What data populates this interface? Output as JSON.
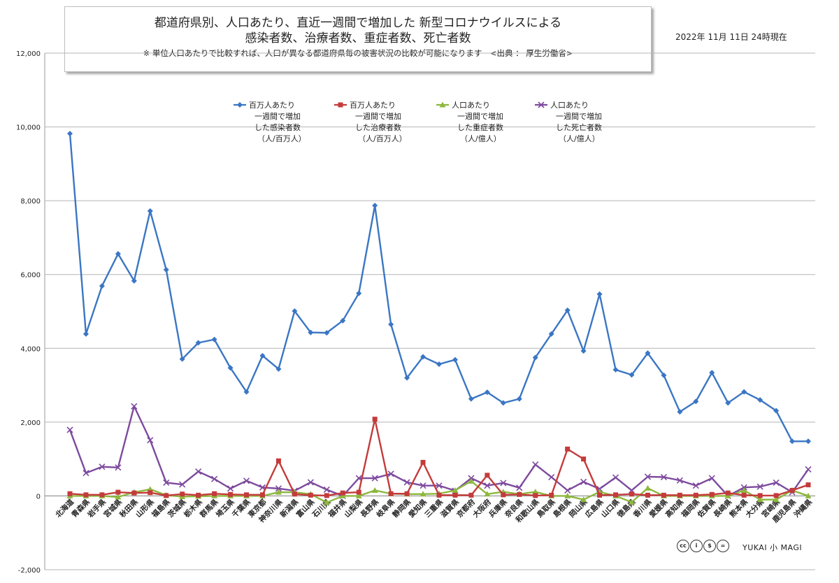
{
  "header": {
    "title_line1": "都道府県別、人口あたり、直近一週間で増加した 新型コロナウイルスによる",
    "title_line2": "感染者数、治療者数、重症者数、死亡者数",
    "note": "※ 単位人口あたりで比較すれば、人口が異なる都道府県毎の被害状況の比較が可能になります　<出典 ： 厚生労働省>",
    "date": "2022年 11月 11日 24時現在"
  },
  "logo": {
    "cc_icons": [
      "cc",
      "by",
      "nc",
      "nd"
    ],
    "text": "YUKAI 小 MAGI"
  },
  "chart_data": {
    "type": "line",
    "ylim": [
      -2000,
      12000
    ],
    "yticks": [
      -2000,
      0,
      2000,
      4000,
      6000,
      8000,
      10000,
      12000
    ],
    "ytick_labels": [
      "-2,000",
      "0",
      "2,000",
      "4,000",
      "6,000",
      "8,000",
      "10,000",
      "12,000"
    ],
    "grid": true,
    "legend_position": "top-center",
    "categories": [
      "北海道",
      "青森県",
      "岩手県",
      "宮城県",
      "秋田県",
      "山形県",
      "福島県",
      "茨城県",
      "栃木県",
      "群馬県",
      "埼玉県",
      "千葉県",
      "東京都",
      "神奈川県",
      "新潟県",
      "富山県",
      "石川県",
      "福井県",
      "山梨県",
      "長野県",
      "岐阜県",
      "静岡県",
      "愛知県",
      "三重県",
      "滋賀県",
      "京都府",
      "大阪府",
      "兵庫県",
      "奈良県",
      "和歌山県",
      "鳥取県",
      "島根県",
      "岡山県",
      "広島県",
      "山口県",
      "徳島県",
      "香川県",
      "愛媛県",
      "高知県",
      "福岡県",
      "佐賀県",
      "長崎県",
      "熊本県",
      "大分県",
      "宮崎県",
      "鹿児島県",
      "沖縄県"
    ],
    "series": [
      {
        "name": "百万人あたり一週間で増加した感染者数（人/百万人）",
        "legend_lines": [
          "百万人あたり",
          "一週間で増加",
          "した感染者数",
          "（人/百万人）"
        ],
        "color": "#3a76c4",
        "marker": "diamond",
        "values": [
          9820,
          4390,
          5690,
          6560,
          5830,
          7720,
          6130,
          3710,
          4150,
          4240,
          3470,
          2820,
          3800,
          3440,
          5010,
          4430,
          4420,
          4750,
          5490,
          7870,
          4650,
          3200,
          3770,
          3570,
          3690,
          2630,
          2810,
          2520,
          2630,
          3750,
          4390,
          5030,
          3930,
          5470,
          3420,
          3280,
          3870,
          3270,
          2280,
          2560,
          3340,
          2520,
          2820,
          2600,
          2310,
          1480,
          1480
        ]
      },
      {
        "name": "百万人あたり一週間で増加した治療者数（人/百万人）",
        "legend_lines": [
          "百万人あたり",
          "一週間で増加",
          "した治療者数",
          "（人/百万人）"
        ],
        "color": "#c43b3b",
        "marker": "square",
        "values": [
          60,
          30,
          30,
          100,
          80,
          90,
          10,
          50,
          20,
          60,
          40,
          30,
          30,
          950,
          50,
          20,
          10,
          80,
          100,
          2080,
          60,
          60,
          910,
          20,
          20,
          20,
          560,
          30,
          40,
          10,
          20,
          1270,
          1000,
          20,
          30,
          50,
          20,
          20,
          20,
          20,
          40,
          80,
          20,
          10,
          10,
          150,
          300
        ]
      },
      {
        "name": "人口あたり一週間で増加した重症者数（人/億人）",
        "legend_lines": [
          "人口あたり",
          "一週間で増加",
          "した重症者数",
          "（人/億人）"
        ],
        "color": "#8db83e",
        "marker": "triangle",
        "values": [
          0,
          0,
          0,
          -30,
          100,
          180,
          20,
          -20,
          -10,
          0,
          0,
          0,
          0,
          100,
          100,
          50,
          -180,
          0,
          0,
          150,
          60,
          50,
          50,
          60,
          150,
          400,
          50,
          110,
          50,
          110,
          0,
          0,
          -100,
          110,
          0,
          -170,
          210,
          0,
          0,
          0,
          0,
          0,
          150,
          -100,
          -100,
          150,
          0
        ]
      },
      {
        "name": "人口あたり一週間で増加した死亡者数（人/億人）",
        "legend_lines": [
          "人口あたり",
          "一週間で増加",
          "した死亡者数",
          "（人/億人）"
        ],
        "color": "#7d4a9e",
        "marker": "x",
        "values": [
          1790,
          620,
          790,
          770,
          2430,
          1510,
          360,
          310,
          660,
          460,
          200,
          410,
          230,
          200,
          140,
          370,
          170,
          0,
          480,
          480,
          600,
          370,
          280,
          280,
          140,
          480,
          280,
          350,
          220,
          850,
          510,
          150,
          380,
          190,
          500,
          150,
          520,
          510,
          420,
          280,
          480,
          0,
          230,
          250,
          360,
          100,
          720
        ]
      }
    ]
  }
}
